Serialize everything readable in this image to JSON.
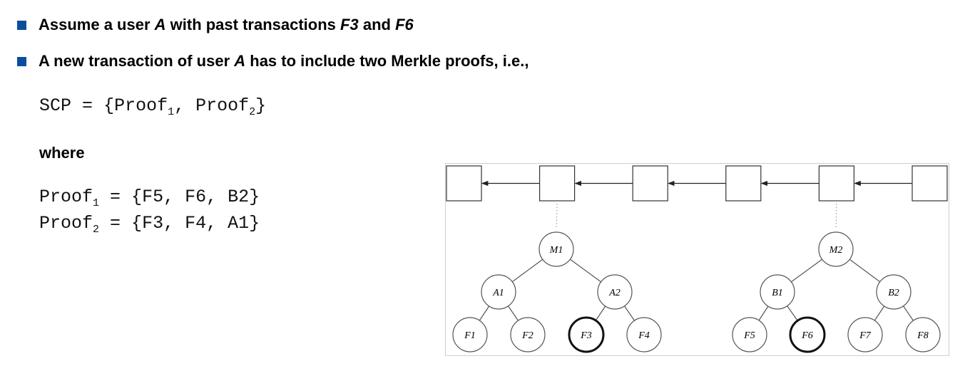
{
  "bullets": [
    {
      "parts": [
        "Assume a user ",
        "A",
        " with past transactions ",
        "F3",
        " and ",
        "F6"
      ]
    },
    {
      "parts": [
        "A new transaction of user ",
        "A",
        " has to include two Merkle proofs, i.e.,"
      ]
    }
  ],
  "scp": {
    "lhs": "SCP",
    "eq": "=",
    "open": "{",
    "item1": "Proof",
    "sub1": "1",
    "comma": ",",
    "item2": "Proof",
    "sub2": "2",
    "close": "}"
  },
  "where_label": "where",
  "proofs": [
    {
      "name": "Proof",
      "sub": "1",
      "eq": "=",
      "value": "{F5, F6, B2}"
    },
    {
      "name": "Proof",
      "sub": "2",
      "eq": "=",
      "value": "{F3, F4, A1}"
    }
  ],
  "diagram": {
    "block_count": 6,
    "trees": [
      {
        "root": "M1",
        "internal": [
          "A1",
          "A2"
        ],
        "leaves": [
          "F1",
          "F2",
          "F3",
          "F4"
        ],
        "highlighted": [
          "F3"
        ]
      },
      {
        "root": "M2",
        "internal": [
          "B1",
          "B2"
        ],
        "leaves": [
          "F5",
          "F6",
          "F7",
          "F8"
        ],
        "highlighted": [
          "F6"
        ]
      }
    ]
  }
}
